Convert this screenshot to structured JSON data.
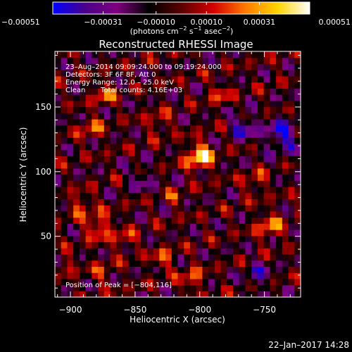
{
  "chart_data": {
    "type": "heatmap",
    "title": "Reconstructed RHESSI Image",
    "xlabel": "Heliocentric X (arcsec)",
    "ylabel": "Heliocentric Y (arcsec)",
    "xlim": [
      -912,
      -722
    ],
    "ylim": [
      3,
      193
    ],
    "xticks": [
      -900,
      -850,
      -800,
      -750
    ],
    "yticks": [
      50,
      100,
      150
    ],
    "xtick_labels": [
      "−900",
      "−850",
      "−800",
      "−750"
    ],
    "ytick_labels": [
      "50",
      "100",
      "150"
    ],
    "colorbar": {
      "min": -0.00051,
      "max": 0.00051,
      "ticks": [
        -0.00051,
        -0.00031,
        -0.0001,
        0.0001,
        0.00031,
        0.00051
      ],
      "tick_labels": [
        "−0.00051",
        "−0.00031",
        "−0.00010",
        "0.00010",
        "0.00031",
        "0.00051"
      ],
      "unit_parts": {
        "open": "(photons cm",
        "exp1": "−2",
        "mid": " s",
        "exp2": "−1",
        "mid2": " asec",
        "exp3": "−2",
        "close": ")"
      },
      "colors": [
        "#0000ff",
        "#4a008c",
        "#7f007f",
        "#000000",
        "#5a0000",
        "#d40000",
        "#ff7a00",
        "#ffd400",
        "#ffffff"
      ]
    },
    "sources": [
      {
        "x": -800,
        "y": 112,
        "peak": 0.00051,
        "sigma": 7
      },
      {
        "x": -874,
        "y": 160,
        "peak": 0.00028,
        "sigma": 6
      },
      {
        "x": -884,
        "y": 133,
        "peak": 0.00025,
        "sigma": 6
      },
      {
        "x": -832,
        "y": 138,
        "peak": 0.00022,
        "sigma": 6
      },
      {
        "x": -784,
        "y": 160,
        "peak": 0.0002,
        "sigma": 6
      },
      {
        "x": -757,
        "y": 92,
        "peak": 0.00022,
        "sigma": 6
      },
      {
        "x": -746,
        "y": 58,
        "peak": 0.0003,
        "sigma": 7
      },
      {
        "x": -892,
        "y": 75,
        "peak": 0.00024,
        "sigma": 6
      },
      {
        "x": -878,
        "y": 58,
        "peak": 0.00032,
        "sigma": 7
      },
      {
        "x": -858,
        "y": 47,
        "peak": 0.00022,
        "sigma": 6
      },
      {
        "x": -828,
        "y": 33,
        "peak": 0.00024,
        "sigma": 6
      },
      {
        "x": -806,
        "y": 17,
        "peak": 0.00028,
        "sigma": 6
      },
      {
        "x": -875,
        "y": 22,
        "peak": 0.00018,
        "sigma": 6
      },
      {
        "x": -820,
        "y": 80,
        "peak": 0.00016,
        "sigma": 5
      },
      {
        "x": -904,
        "y": 28,
        "peak": 0.0002,
        "sigma": 5
      },
      {
        "x": -736,
        "y": 128,
        "peak": -0.00035,
        "sigma": 9
      },
      {
        "x": -766,
        "y": 135,
        "peak": -0.0003,
        "sigma": 7
      },
      {
        "x": -755,
        "y": 20,
        "peak": -0.00022,
        "sigma": 7
      },
      {
        "x": -845,
        "y": 95,
        "peak": -0.00018,
        "sigma": 7
      }
    ],
    "background_mean": -8e-05,
    "annotations": {
      "time": "23–Aug–2014 09:09:24.000 to 09:19:24.000",
      "detectors": "Detectors: 3F 6F 8F, Att 0",
      "energy": "Energy Range: 12.0 – 25.0 keV",
      "clean_label": "Clean",
      "counts": "Total counts: 4.16E+03",
      "peak": "Position of Peak = [−804,116]"
    }
  },
  "footer": {
    "timestamp": "22–Jan–2017 14:28"
  }
}
